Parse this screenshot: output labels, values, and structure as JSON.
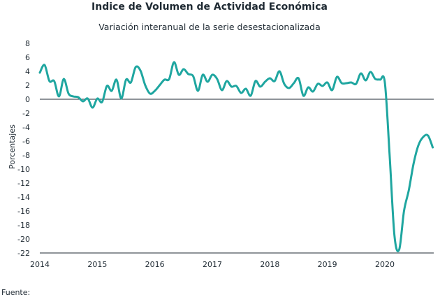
{
  "chart_data": {
    "type": "line",
    "title": "Indice de Volumen de  Actividad Económica",
    "subtitle": "Variación interanual de la serie desestacionalizada",
    "xlabel": "",
    "ylabel": "Porcentajes",
    "ylim": [
      -22,
      8
    ],
    "yticks": [
      8,
      6,
      4,
      2,
      0,
      -2,
      -4,
      -6,
      -8,
      -10,
      -12,
      -14,
      -16,
      -18,
      -20,
      -22
    ],
    "xlim": [
      2014,
      2020.85
    ],
    "xticks": [
      "2014",
      "2015",
      "2016",
      "2017",
      "2018",
      "2019",
      "2020"
    ],
    "grid": false,
    "line_color": "#1fa6a0",
    "series": [
      {
        "x": [
          2014.0,
          2014.083,
          2014.167,
          2014.25,
          2014.333,
          2014.417,
          2014.5,
          2014.583,
          2014.667,
          2014.75,
          2014.833,
          2014.917,
          2015.0,
          2015.083,
          2015.167,
          2015.25,
          2015.333,
          2015.417,
          2015.5,
          2015.583,
          2015.667,
          2015.75,
          2015.833,
          2015.917,
          2016.0,
          2016.083,
          2016.167,
          2016.25,
          2016.333,
          2016.417,
          2016.5,
          2016.583,
          2016.667,
          2016.75,
          2016.833,
          2016.917,
          2017.0,
          2017.083,
          2017.167,
          2017.25,
          2017.333,
          2017.417,
          2017.5,
          2017.583,
          2017.667,
          2017.75,
          2017.833,
          2017.917,
          2018.0,
          2018.083,
          2018.167,
          2018.25,
          2018.333,
          2018.417,
          2018.5,
          2018.583,
          2018.667,
          2018.75,
          2018.833,
          2018.917,
          2019.0,
          2019.083,
          2019.167,
          2019.25,
          2019.333,
          2019.417,
          2019.5,
          2019.583,
          2019.667,
          2019.75,
          2019.833,
          2019.917,
          2020.0,
          2020.083,
          2020.167,
          2020.25,
          2020.333,
          2020.417,
          2020.5,
          2020.583,
          2020.667,
          2020.75,
          2020.833
        ],
        "values": [
          3.8,
          4.9,
          2.6,
          2.6,
          0.4,
          2.9,
          0.8,
          0.4,
          0.3,
          -0.3,
          0.1,
          -1.2,
          0.1,
          -0.4,
          1.9,
          1.2,
          2.8,
          0.1,
          2.8,
          2.4,
          4.6,
          4.1,
          2.0,
          0.8,
          1.2,
          2.0,
          2.8,
          2.9,
          5.3,
          3.5,
          4.3,
          3.6,
          3.3,
          1.2,
          3.5,
          2.5,
          3.5,
          2.9,
          1.3,
          2.6,
          1.8,
          1.9,
          0.9,
          1.5,
          0.5,
          2.6,
          1.8,
          2.5,
          3.0,
          2.6,
          4.0,
          2.2,
          1.6,
          2.3,
          3.0,
          0.5,
          1.7,
          1.1,
          2.2,
          1.9,
          2.4,
          1.3,
          3.2,
          2.3,
          2.3,
          2.4,
          2.2,
          3.7,
          2.7,
          3.9,
          2.9,
          2.8,
          2.4,
          -8.0,
          -19.5,
          -21.5,
          -16.0,
          -13.0,
          -9.2,
          -6.6,
          -5.4,
          -5.2,
          -6.9
        ]
      }
    ]
  },
  "source_label": "Fuente:"
}
